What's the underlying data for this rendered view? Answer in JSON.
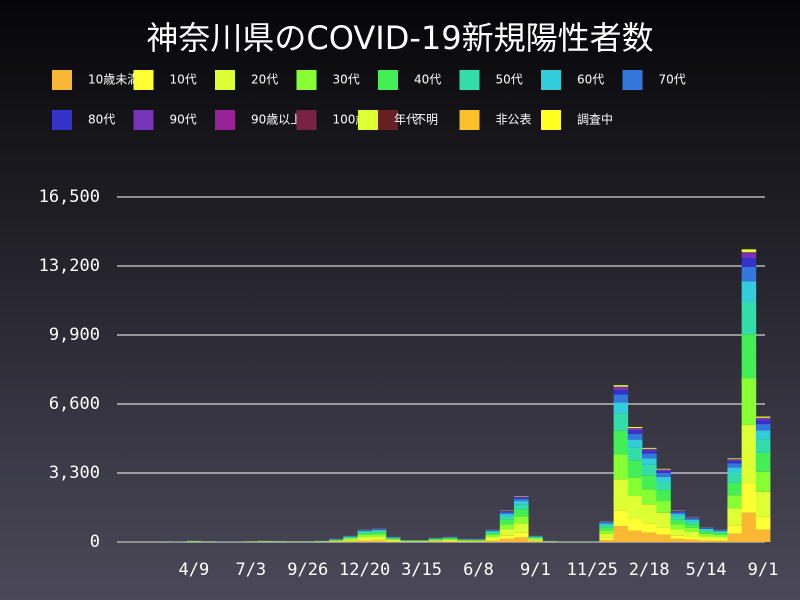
{
  "chart_data": {
    "type": "stacked_bar",
    "title": "神奈川県のCOVID-19新規陽性者数",
    "categories": [
      null,
      null,
      null,
      null,
      "4/9",
      null,
      null,
      null,
      "7/3",
      null,
      null,
      null,
      "9/26",
      null,
      null,
      null,
      "12/20",
      null,
      null,
      null,
      "3/15",
      null,
      null,
      null,
      "6/8",
      null,
      null,
      null,
      "9/1",
      null,
      null,
      null,
      "11/25",
      null,
      null,
      null,
      "2/18",
      null,
      null,
      null,
      "5/14",
      null,
      null,
      null,
      "9/1"
    ],
    "ylim": [
      0,
      16500
    ],
    "yticks": [
      0,
      {
        "value": 3300,
        "label": "3,300"
      },
      {
        "value": 6600,
        "label": "6,600"
      },
      {
        "value": 9900,
        "label": "9,900"
      },
      {
        "value": 13200,
        "label": "13,200"
      },
      {
        "value": 16500,
        "label": "16,500"
      }
    ],
    "grid": true,
    "series": [
      {
        "name": "10歳未満",
        "color": "#f9b733",
        "values": [
          0,
          0,
          1,
          2,
          6,
          4,
          1,
          1,
          4,
          6,
          5,
          4,
          4,
          6,
          15,
          30,
          60,
          65,
          25,
          10,
          10,
          20,
          25,
          15,
          15,
          60,
          150,
          220,
          30,
          5,
          3,
          3,
          3,
          100,
          750,
          550,
          450,
          350,
          150,
          120,
          70,
          60,
          400,
          1400,
          600
        ]
      },
      {
        "name": "10代",
        "color": "#ffff33",
        "values": [
          0,
          0,
          1,
          2,
          6,
          4,
          1,
          1,
          4,
          6,
          5,
          4,
          4,
          6,
          15,
          30,
          60,
          65,
          25,
          10,
          10,
          20,
          25,
          15,
          15,
          60,
          150,
          220,
          30,
          5,
          3,
          3,
          3,
          100,
          750,
          550,
          450,
          350,
          150,
          120,
          70,
          60,
          400,
          1400,
          600
        ]
      },
      {
        "name": "20代",
        "color": "#ddff33",
        "values": [
          0,
          0,
          1,
          4,
          12,
          8,
          2,
          2,
          8,
          12,
          10,
          8,
          8,
          12,
          30,
          60,
          120,
          130,
          50,
          20,
          20,
          40,
          50,
          30,
          30,
          120,
          300,
          440,
          60,
          10,
          6,
          6,
          6,
          200,
          1500,
          1100,
          900,
          700,
          300,
          240,
          140,
          120,
          800,
          2800,
          1200
        ]
      },
      {
        "name": "30代",
        "color": "#88ff33",
        "values": [
          0,
          0,
          1,
          3,
          10,
          6,
          2,
          2,
          6,
          10,
          8,
          6,
          6,
          10,
          24,
          48,
          96,
          104,
          40,
          16,
          16,
          32,
          40,
          24,
          24,
          96,
          240,
          352,
          48,
          8,
          5,
          5,
          5,
          160,
          1200,
          880,
          720,
          560,
          240,
          192,
          112,
          96,
          640,
          2240,
          960
        ]
      },
      {
        "name": "40代",
        "color": "#44ee55",
        "values": [
          0,
          0,
          1,
          3,
          9,
          6,
          2,
          2,
          6,
          9,
          8,
          6,
          6,
          9,
          23,
          45,
          90,
          98,
          38,
          15,
          15,
          30,
          38,
          23,
          23,
          90,
          225,
          330,
          45,
          8,
          5,
          5,
          5,
          150,
          1125,
          825,
          675,
          525,
          225,
          180,
          105,
          90,
          600,
          2100,
          900
        ]
      },
      {
        "name": "50代",
        "color": "#33ddaa",
        "values": [
          0,
          0,
          1,
          2,
          7,
          4,
          1,
          1,
          4,
          7,
          6,
          4,
          4,
          7,
          17,
          33,
          66,
          72,
          28,
          11,
          11,
          22,
          28,
          17,
          17,
          66,
          165,
          242,
          33,
          6,
          3,
          3,
          3,
          110,
          825,
          605,
          495,
          385,
          165,
          132,
          77,
          66,
          440,
          1540,
          660
        ]
      },
      {
        "name": "60代",
        "color": "#33ccdd",
        "values": [
          0,
          0,
          0,
          1,
          4,
          3,
          1,
          1,
          3,
          4,
          4,
          3,
          3,
          4,
          11,
          21,
          42,
          46,
          18,
          7,
          7,
          14,
          18,
          11,
          11,
          42,
          105,
          154,
          21,
          4,
          2,
          2,
          2,
          70,
          525,
          385,
          315,
          245,
          105,
          84,
          49,
          42,
          280,
          980,
          420
        ]
      },
      {
        "name": "70代",
        "color": "#3377dd",
        "values": [
          0,
          0,
          0,
          1,
          3,
          2,
          1,
          1,
          2,
          3,
          3,
          2,
          2,
          3,
          8,
          15,
          30,
          33,
          13,
          5,
          5,
          10,
          13,
          8,
          8,
          30,
          75,
          110,
          15,
          3,
          2,
          2,
          2,
          50,
          375,
          275,
          225,
          175,
          75,
          60,
          35,
          30,
          200,
          700,
          300
        ]
      },
      {
        "name": "80代",
        "color": "#3333cc",
        "values": [
          0,
          0,
          0,
          1,
          2,
          1,
          0,
          0,
          1,
          2,
          2,
          1,
          1,
          2,
          5,
          9,
          18,
          20,
          8,
          3,
          3,
          6,
          8,
          5,
          5,
          18,
          45,
          66,
          9,
          2,
          1,
          1,
          1,
          30,
          225,
          165,
          135,
          105,
          45,
          36,
          21,
          18,
          120,
          420,
          180
        ]
      },
      {
        "name": "90代",
        "color": "#7733bb",
        "values": [
          0,
          0,
          0,
          0,
          1,
          1,
          0,
          0,
          1,
          1,
          1,
          1,
          1,
          1,
          2,
          5,
          9,
          10,
          4,
          2,
          2,
          3,
          4,
          2,
          2,
          9,
          23,
          33,
          5,
          1,
          0,
          0,
          0,
          15,
          113,
          83,
          68,
          53,
          23,
          18,
          11,
          9,
          60,
          210,
          90
        ]
      },
      {
        "name": "90歳以上",
        "color": "#992299",
        "values": [
          0,
          0,
          0,
          0,
          0,
          0,
          0,
          0,
          0,
          0,
          0,
          0,
          0,
          0,
          1,
          2,
          3,
          3,
          1,
          1,
          1,
          1,
          1,
          1,
          1,
          3,
          8,
          11,
          2,
          0,
          0,
          0,
          0,
          5,
          38,
          28,
          23,
          18,
          8,
          6,
          4,
          3,
          20,
          70,
          30
        ]
      },
      {
        "name": "100歳以上",
        "color": "#772244",
        "values": [
          0,
          0,
          0,
          0,
          0,
          0,
          0,
          0,
          0,
          0,
          0,
          0,
          0,
          0,
          0,
          0,
          0,
          0,
          0,
          0,
          0,
          0,
          0,
          0,
          0,
          0,
          0,
          0,
          0,
          0,
          0,
          0,
          0,
          0,
          0,
          0,
          0,
          0,
          0,
          0,
          0,
          0,
          0,
          0,
          0
        ]
      },
      {
        "name": "不明",
        "color": "#661f22",
        "values": [
          0,
          0,
          0,
          0,
          0,
          0,
          0,
          0,
          0,
          0,
          0,
          0,
          0,
          0,
          0,
          0,
          0,
          0,
          0,
          0,
          0,
          0,
          0,
          0,
          0,
          0,
          0,
          0,
          0,
          0,
          0,
          0,
          0,
          0,
          0,
          0,
          0,
          0,
          0,
          0,
          0,
          0,
          0,
          0,
          0
        ]
      },
      {
        "name": "非公表",
        "color": "#fbbf2a",
        "values": [
          0,
          0,
          0,
          0,
          0,
          0,
          0,
          0,
          0,
          0,
          0,
          0,
          0,
          0,
          0,
          0,
          0,
          0,
          0,
          0,
          0,
          0,
          0,
          0,
          0,
          0,
          0,
          0,
          0,
          0,
          0,
          0,
          0,
          0,
          0,
          0,
          0,
          0,
          0,
          0,
          0,
          0,
          0,
          0,
          0
        ]
      },
      {
        "name": "調査中",
        "color": "#ffff22",
        "values": [
          0,
          0,
          0,
          0,
          0,
          0,
          0,
          0,
          0,
          0,
          0,
          0,
          0,
          0,
          0,
          0,
          0,
          0,
          0,
          0,
          0,
          0,
          0,
          0,
          0,
          0,
          0,
          0,
          0,
          0,
          0,
          0,
          0,
          0,
          0,
          0,
          0,
          0,
          0,
          0,
          0,
          0,
          0,
          0,
          0
        ]
      },
      {
        "name": "年代",
        "color": "#ddff33",
        "values": [
          0,
          0,
          0,
          0,
          1,
          0,
          0,
          0,
          0,
          1,
          1,
          0,
          0,
          1,
          2,
          3,
          6,
          7,
          3,
          1,
          1,
          2,
          3,
          2,
          2,
          6,
          15,
          22,
          3,
          1,
          0,
          0,
          0,
          10,
          75,
          55,
          45,
          35,
          15,
          12,
          7,
          6,
          40,
          140,
          60
        ]
      }
    ]
  }
}
